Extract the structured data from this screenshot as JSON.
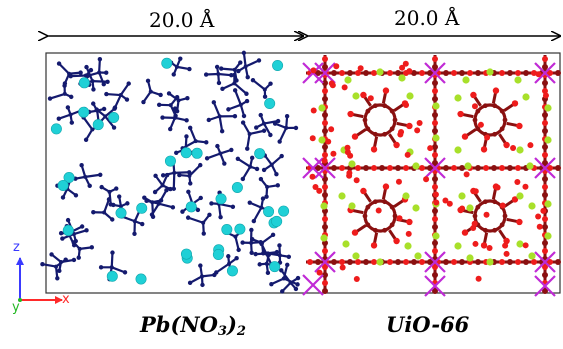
{
  "dimensions": {
    "left_width": "20.0 Å",
    "right_width": "20.0 Å"
  },
  "regions": {
    "left": {
      "formula_main": "Pb(NO",
      "formula_sub": "3",
      "formula_close": ")",
      "formula_sub2": "2"
    },
    "right": {
      "label": "UiO-66"
    }
  },
  "axes": {
    "z_label": "z",
    "x_label": "x",
    "y_label": "y",
    "z_color": "#3a3aff",
    "x_color": "#ff2a2a",
    "y_color": "#22b822"
  },
  "colors": {
    "nitrate_molecule": "#141a6e",
    "lead_ion": "#1fd0d6",
    "uio_oxygen": "#ee1c1c",
    "uio_carbon": "#8a1010",
    "uio_linker_green": "#a8e02a",
    "uio_zr_magenta": "#c02ad6",
    "box_border": "#333333"
  }
}
